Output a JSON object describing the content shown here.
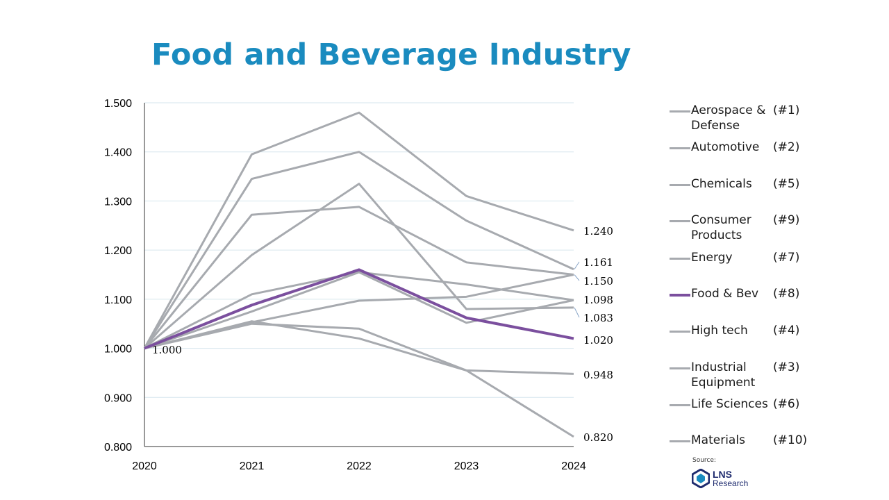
{
  "title": "Food and Beverage Industry",
  "chart_data": {
    "type": "line",
    "x": [
      "2020",
      "2021",
      "2022",
      "2023",
      "2024"
    ],
    "ylim": [
      0.8,
      1.5
    ],
    "yticks": [
      "0.800",
      "0.900",
      "1.000",
      "1.100",
      "1.200",
      "1.300",
      "1.400",
      "1.500"
    ],
    "grid": true,
    "highlight_color": "#7b4f9e",
    "base_color": "#a7aaaf",
    "series": [
      {
        "name": "Aerospace & Defense",
        "rank": "(#1)",
        "values": [
          1.0,
          1.395,
          1.48,
          1.31,
          1.24
        ],
        "highlight": false
      },
      {
        "name": "Automotive",
        "rank": "(#2)",
        "values": [
          1.0,
          1.345,
          1.4,
          1.26,
          1.161
        ],
        "highlight": false
      },
      {
        "name": "Chemicals",
        "rank": "(#5)",
        "values": [
          1.0,
          1.11,
          1.155,
          1.13,
          1.098
        ],
        "highlight": false
      },
      {
        "name": "Consumer Products",
        "rank": "(#9)",
        "values": [
          1.0,
          1.05,
          1.04,
          0.955,
          0.948
        ],
        "highlight": false
      },
      {
        "name": "Energy",
        "rank": "(#7)",
        "values": [
          1.0,
          1.19,
          1.335,
          1.08,
          1.083
        ],
        "highlight": false
      },
      {
        "name": "Food & Bev",
        "rank": "(#8)",
        "values": [
          1.0,
          1.088,
          1.16,
          1.062,
          1.02
        ],
        "highlight": true
      },
      {
        "name": "High tech",
        "rank": "(#4)",
        "values": [
          1.0,
          1.053,
          1.097,
          1.105,
          1.15
        ],
        "highlight": false
      },
      {
        "name": "Industrial Equipment",
        "rank": "(#3)",
        "values": [
          1.0,
          1.272,
          1.288,
          1.175,
          1.15
        ],
        "highlight": false
      },
      {
        "name": "Life Sciences",
        "rank": "(#6)",
        "values": [
          1.0,
          1.075,
          1.155,
          1.052,
          1.098
        ],
        "highlight": false
      },
      {
        "name": "Materials",
        "rank": "(#10)",
        "values": [
          1.0,
          1.055,
          1.02,
          0.955,
          0.82
        ],
        "highlight": false
      }
    ],
    "annotations": [
      {
        "text": "1.000",
        "x": "2020",
        "y": 1.0
      },
      {
        "text": "1.240",
        "x": "2024",
        "y": 1.24
      },
      {
        "text": "1.161",
        "x": "2024",
        "y": 1.161
      },
      {
        "text": "1.150",
        "x": "2024",
        "y": 1.15
      },
      {
        "text": "1.098",
        "x": "2024",
        "y": 1.098
      },
      {
        "text": "1.083",
        "x": "2024",
        "y": 1.083
      },
      {
        "text": "1.020",
        "x": "2024",
        "y": 1.02
      },
      {
        "text": "0.948",
        "x": "2024",
        "y": 0.948
      },
      {
        "text": "0.820",
        "x": "2024",
        "y": 0.82
      }
    ]
  },
  "source": "Source:",
  "logo": {
    "main": "LNS",
    "sub": "Research"
  }
}
